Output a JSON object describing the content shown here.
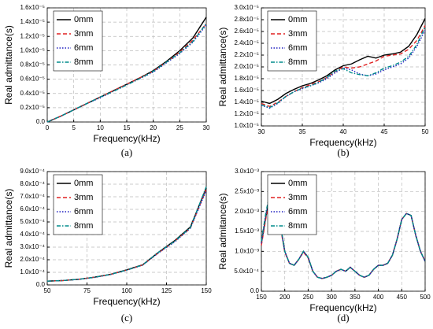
{
  "chart_data": [
    {
      "type": "line",
      "label": "(a)",
      "x_label": "Frequency(kHz)",
      "y_label": "Real admittance(s)",
      "x": [
        0,
        2.5,
        5,
        7.5,
        10,
        12.5,
        15,
        17.5,
        20,
        22.5,
        25,
        27.5,
        30
      ],
      "xlim": [
        0,
        30
      ],
      "xticks": [
        0,
        5,
        10,
        15,
        20,
        25,
        30
      ],
      "ylim": [
        0,
        1.6e-05
      ],
      "yticks": [
        {
          "value": 0,
          "label": "0.0"
        },
        {
          "value": 2e-06,
          "label": "0.2x10⁻⁵"
        },
        {
          "value": 4e-06,
          "label": "0.4x10⁻⁵"
        },
        {
          "value": 6e-06,
          "label": "0.6x10⁻⁵"
        },
        {
          "value": 8e-06,
          "label": "0.8x10⁻⁵"
        },
        {
          "value": 1e-05,
          "label": "1.0x10⁻⁵"
        },
        {
          "value": 1.2e-05,
          "label": "1.2x10⁻⁵"
        },
        {
          "value": 1.4e-05,
          "label": "1.4x10⁻⁵"
        },
        {
          "value": 1.6e-05,
          "label": "1.6x10⁻⁵"
        }
      ],
      "grid": true,
      "legend": "upper left",
      "series": [
        {
          "name": "0mm",
          "color": "#000000",
          "style": "solid",
          "values": [
            0,
            8e-07,
            1.7e-06,
            2.6e-06,
            3.5e-06,
            4.4e-06,
            5.3e-06,
            6.2e-06,
            7.2e-06,
            8.5e-06,
            1e-05,
            1.18e-05,
            1.47e-05
          ]
        },
        {
          "name": "3mm",
          "color": "#e02020",
          "style": "dashed",
          "values": [
            0,
            8e-07,
            1.7e-06,
            2.6e-06,
            3.5e-06,
            4.4e-06,
            5.3e-06,
            6.2e-06,
            7.1e-06,
            8.4e-06,
            9.8e-06,
            1.15e-05,
            1.38e-05
          ]
        },
        {
          "name": "6mm",
          "color": "#2020c0",
          "style": "dotted",
          "values": [
            0,
            8e-07,
            1.7e-06,
            2.6e-06,
            3.4e-06,
            4.3e-06,
            5.2e-06,
            6.1e-06,
            7e-06,
            8.3e-06,
            9.6e-06,
            1.12e-05,
            1.36e-05
          ]
        },
        {
          "name": "8mm",
          "color": "#008b8b",
          "style": "dashdot",
          "values": [
            0,
            8e-07,
            1.7e-06,
            2.6e-06,
            3.5e-06,
            4.3e-06,
            5.2e-06,
            6.1e-06,
            7.1e-06,
            8.4e-06,
            9.7e-06,
            1.13e-05,
            1.38e-05
          ]
        }
      ]
    },
    {
      "type": "line",
      "label": "(b)",
      "x_label": "Frequency(kHz)",
      "y_label": "Real admittance(s)",
      "x": [
        30,
        31,
        32,
        33,
        34,
        35,
        36,
        37,
        38,
        39,
        40,
        41,
        42,
        43,
        44,
        45,
        46,
        47,
        48,
        49,
        50
      ],
      "xlim": [
        30,
        50
      ],
      "xticks": [
        30,
        35,
        40,
        45,
        50
      ],
      "ylim": [
        1e-05,
        3e-05
      ],
      "yticks": [
        {
          "value": 1e-05,
          "label": "1.0x10⁻⁵"
        },
        {
          "value": 1.2e-05,
          "label": "1.2x10⁻⁵"
        },
        {
          "value": 1.4e-05,
          "label": "1.4x10⁻⁵"
        },
        {
          "value": 1.6e-05,
          "label": "1.6x10⁻⁵"
        },
        {
          "value": 1.8e-05,
          "label": "1.8x10⁻⁵"
        },
        {
          "value": 2e-05,
          "label": "2.0x10⁻⁵"
        },
        {
          "value": 2.2e-05,
          "label": "2.2x10⁻⁵"
        },
        {
          "value": 2.4e-05,
          "label": "2.4x10⁻⁵"
        },
        {
          "value": 2.6e-05,
          "label": "2.6x10⁻⁵"
        },
        {
          "value": 2.8e-05,
          "label": "2.8x10⁻⁵"
        },
        {
          "value": 3e-05,
          "label": "3.0x10⁻⁵"
        }
      ],
      "grid": true,
      "legend": "upper left",
      "series": [
        {
          "name": "0mm",
          "color": "#000000",
          "style": "solid",
          "values": [
            1.42e-05,
            1.38e-05,
            1.45e-05,
            1.55e-05,
            1.62e-05,
            1.68e-05,
            1.72e-05,
            1.78e-05,
            1.85e-05,
            1.95e-05,
            2.02e-05,
            2.05e-05,
            2.12e-05,
            2.18e-05,
            2.15e-05,
            2.2e-05,
            2.22e-05,
            2.25e-05,
            2.35e-05,
            2.55e-05,
            2.82e-05
          ]
        },
        {
          "name": "3mm",
          "color": "#e02020",
          "style": "dashed",
          "values": [
            1.38e-05,
            1.33e-05,
            1.4e-05,
            1.5e-05,
            1.58e-05,
            1.65e-05,
            1.7e-05,
            1.75e-05,
            1.82e-05,
            1.92e-05,
            2e-05,
            1.98e-05,
            2e-05,
            2.05e-05,
            2.1e-05,
            2.18e-05,
            2.2e-05,
            2.22e-05,
            2.3e-05,
            2.45e-05,
            2.7e-05
          ]
        },
        {
          "name": "6mm",
          "color": "#2020c0",
          "style": "dotted",
          "values": [
            1.35e-05,
            1.3e-05,
            1.38e-05,
            1.5e-05,
            1.58e-05,
            1.63e-05,
            1.68e-05,
            1.73e-05,
            1.8e-05,
            1.9e-05,
            1.98e-05,
            1.95e-05,
            1.88e-05,
            1.85e-05,
            1.88e-05,
            1.95e-05,
            2e-05,
            2.05e-05,
            2.15e-05,
            2.35e-05,
            2.62e-05
          ]
        },
        {
          "name": "8mm",
          "color": "#008b8b",
          "style": "dashdot",
          "values": [
            1.36e-05,
            1.31e-05,
            1.39e-05,
            1.5e-05,
            1.58e-05,
            1.64e-05,
            1.68e-05,
            1.74e-05,
            1.82e-05,
            1.93e-05,
            1.97e-05,
            1.9e-05,
            1.87e-05,
            1.85e-05,
            1.9e-05,
            1.98e-05,
            2.02e-05,
            2.08e-05,
            2.18e-05,
            2.38e-05,
            2.68e-05
          ]
        }
      ]
    },
    {
      "type": "line",
      "label": "(c)",
      "x_label": "Frequency(kHz)",
      "y_label": "Real admittance(s)",
      "x": [
        50,
        60,
        70,
        80,
        90,
        100,
        110,
        120,
        130,
        140,
        150
      ],
      "xlim": [
        50,
        150
      ],
      "xticks": [
        50,
        75,
        100,
        125,
        150
      ],
      "ylim": [
        0,
        0.0009
      ],
      "yticks": [
        {
          "value": 0,
          "label": "0.0"
        },
        {
          "value": 0.0001,
          "label": "1.0x10⁻⁴"
        },
        {
          "value": 0.0002,
          "label": "2.0x10⁻⁴"
        },
        {
          "value": 0.0003,
          "label": "3.0x10⁻⁴"
        },
        {
          "value": 0.0004,
          "label": "4.0x10⁻⁴"
        },
        {
          "value": 0.0005,
          "label": "5.0x10⁻⁴"
        },
        {
          "value": 0.0006,
          "label": "6.0x10⁻⁴"
        },
        {
          "value": 0.0007,
          "label": "7.0x10⁻⁴"
        },
        {
          "value": 0.0008,
          "label": "8.0x10⁻⁴"
        },
        {
          "value": 0.0009,
          "label": "9.0x10⁻⁴"
        }
      ],
      "grid": true,
      "legend": "upper left",
      "series": [
        {
          "name": "0mm",
          "color": "#000000",
          "style": "solid",
          "values": [
            3e-05,
            3.5e-05,
            4.5e-05,
            6.2e-05,
            8.5e-05,
            0.00012,
            0.00016,
            0.00026,
            0.00035,
            0.00046,
            0.00077
          ]
        },
        {
          "name": "3mm",
          "color": "#e02020",
          "style": "dashed",
          "values": [
            3e-05,
            3.5e-05,
            4.5e-05,
            6.1e-05,
            8.4e-05,
            0.000118,
            0.000158,
            0.000255,
            0.000345,
            0.00045,
            0.00076
          ]
        },
        {
          "name": "6mm",
          "color": "#2020c0",
          "style": "dotted",
          "values": [
            3e-05,
            3.5e-05,
            4.4e-05,
            6e-05,
            8.3e-05,
            0.000117,
            0.000157,
            0.000255,
            0.00034,
            0.00045,
            0.00075
          ]
        },
        {
          "name": "8mm",
          "color": "#008b8b",
          "style": "dashdot",
          "values": [
            3e-05,
            3.5e-05,
            4.5e-05,
            6.1e-05,
            8.4e-05,
            0.000118,
            0.000158,
            0.00026,
            0.000345,
            0.000455,
            0.00078
          ]
        }
      ]
    },
    {
      "type": "line",
      "label": "(d)",
      "x_label": "Frequency(kHz)",
      "y_label": "Real admitance(s)",
      "x": [
        150,
        160,
        170,
        180,
        190,
        200,
        210,
        220,
        230,
        240,
        250,
        260,
        270,
        280,
        290,
        300,
        310,
        320,
        330,
        340,
        350,
        360,
        370,
        380,
        390,
        400,
        410,
        420,
        430,
        440,
        450,
        460,
        470,
        480,
        490,
        500
      ],
      "xlim": [
        150,
        500
      ],
      "xticks": [
        150,
        200,
        250,
        300,
        350,
        400,
        450,
        500
      ],
      "ylim": [
        0,
        0.003
      ],
      "yticks": [
        {
          "value": 0,
          "label": "0.0"
        },
        {
          "value": 0.0005,
          "label": "5.0x10⁻⁴"
        },
        {
          "value": 0.001,
          "label": "1.0x10⁻³"
        },
        {
          "value": 0.0015,
          "label": "1.5x10⁻³"
        },
        {
          "value": 0.002,
          "label": "2.0x10⁻³"
        },
        {
          "value": 0.0025,
          "label": "2.5x10⁻³"
        },
        {
          "value": 0.003,
          "label": "3.0x10⁻³"
        }
      ],
      "grid": true,
      "legend": "upper left",
      "series": [
        {
          "name": "0mm",
          "color": "#000000",
          "style": "solid",
          "values": [
            0.0012,
            0.0019,
            0.00245,
            0.0024,
            0.0017,
            0.001,
            0.0007,
            0.00065,
            0.0008,
            0.001,
            0.00085,
            0.0005,
            0.00035,
            0.00032,
            0.00035,
            0.0004,
            0.0005,
            0.00055,
            0.0005,
            0.0006,
            0.0005,
            0.0004,
            0.00035,
            0.0004,
            0.00055,
            0.00065,
            0.00065,
            0.0007,
            0.0009,
            0.0013,
            0.0018,
            0.00195,
            0.0019,
            0.0014,
            0.001,
            0.00075
          ]
        },
        {
          "name": "3mm",
          "color": "#e02020",
          "style": "dashed",
          "values": [
            0.00115,
            0.00185,
            0.0024,
            0.00235,
            0.00165,
            0.00098,
            0.0007,
            0.00065,
            0.0008,
            0.00098,
            0.00083,
            0.0005,
            0.00035,
            0.00032,
            0.00035,
            0.0004,
            0.0005,
            0.00055,
            0.0005,
            0.0006,
            0.0005,
            0.0004,
            0.00035,
            0.0004,
            0.00055,
            0.00065,
            0.00065,
            0.0007,
            0.0009,
            0.0013,
            0.0018,
            0.00195,
            0.0019,
            0.0014,
            0.001,
            0.00075
          ]
        },
        {
          "name": "6mm",
          "color": "#2020c0",
          "style": "dotted",
          "values": [
            0.0012,
            0.00195,
            0.0025,
            0.00245,
            0.0017,
            0.001,
            0.0007,
            0.00065,
            0.0008,
            0.001,
            0.00085,
            0.0005,
            0.00035,
            0.00032,
            0.00035,
            0.0004,
            0.0005,
            0.00055,
            0.0005,
            0.0006,
            0.0005,
            0.0004,
            0.00035,
            0.0004,
            0.00055,
            0.00065,
            0.00065,
            0.0007,
            0.0009,
            0.0013,
            0.0018,
            0.00195,
            0.0019,
            0.0014,
            0.001,
            0.00075
          ]
        },
        {
          "name": "8mm",
          "color": "#008b8b",
          "style": "dashdot",
          "values": [
            0.00125,
            0.002,
            0.00255,
            0.00245,
            0.00172,
            0.001,
            0.0007,
            0.00065,
            0.0008,
            0.001,
            0.00085,
            0.0005,
            0.00035,
            0.00032,
            0.00035,
            0.0004,
            0.0005,
            0.00055,
            0.0005,
            0.0006,
            0.0005,
            0.0004,
            0.00035,
            0.0004,
            0.00055,
            0.00065,
            0.00065,
            0.0007,
            0.0009,
            0.0013,
            0.0018,
            0.00195,
            0.0019,
            0.0014,
            0.001,
            0.00075
          ]
        }
      ]
    }
  ]
}
